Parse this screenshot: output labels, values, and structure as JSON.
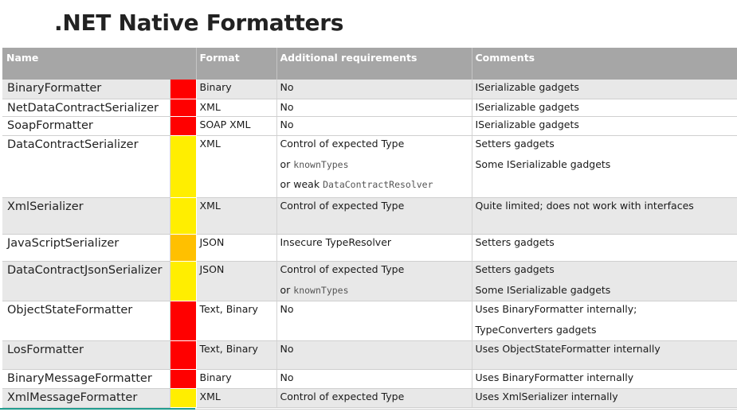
{
  "title": ".NET Native Formatters",
  "colors": {
    "red": "#ff0000",
    "yellow": "#ffee00",
    "orange": "#ffc000",
    "header_bg": "#a6a6a6",
    "row_grey": "#e8e8e8",
    "accent_line": "#1f9c8e"
  },
  "table": {
    "headers": {
      "name": "Name",
      "format": "Format",
      "requirements": "Additional requirements",
      "comments": "Comments"
    },
    "rows": [
      {
        "name": "BinaryFormatter",
        "risk": "red",
        "format": "Binary",
        "req": "No",
        "req_sub": "",
        "req_code": "",
        "req_sub2": "",
        "req_code2": "",
        "comment": "ISerializable gadgets",
        "comment_sub": ""
      },
      {
        "name": "NetDataContractSerializer",
        "risk": "red",
        "format": "XML",
        "req": "No",
        "req_sub": "",
        "req_code": "",
        "req_sub2": "",
        "req_code2": "",
        "comment": "ISerializable gadgets",
        "comment_sub": ""
      },
      {
        "name": "SoapFormatter",
        "risk": "red",
        "format": "SOAP XML",
        "req": "No",
        "req_sub": "",
        "req_code": "",
        "req_sub2": "",
        "req_code2": "",
        "comment": "ISerializable gadgets",
        "comment_sub": ""
      },
      {
        "name": "DataContractSerializer",
        "risk": "yellow",
        "format": "XML",
        "req": "Control of expected Type",
        "req_sub": "or",
        "req_code": "knownTypes",
        "req_sub2": "or weak",
        "req_code2": "DataContractResolver",
        "comment": "Setters gadgets",
        "comment_sub": "Some ISerializable gadgets"
      },
      {
        "name": "XmlSerializer",
        "risk": "yellow",
        "format": "XML",
        "req": "Control of expected Type",
        "req_sub": "",
        "req_code": "",
        "req_sub2": "",
        "req_code2": "",
        "comment": "Quite limited; does not work with interfaces",
        "comment_sub": ""
      },
      {
        "name": "JavaScriptSerializer",
        "risk": "orange",
        "format": "JSON",
        "req": "Insecure TypeResolver",
        "req_sub": "",
        "req_code": "",
        "req_sub2": "",
        "req_code2": "",
        "comment": "Setters gadgets",
        "comment_sub": ""
      },
      {
        "name": "DataContractJsonSerializer",
        "risk": "yellow",
        "format": "JSON",
        "req": "Control of expected Type",
        "req_sub": "or",
        "req_code": "knownTypes",
        "req_sub2": "",
        "req_code2": "",
        "comment": "Setters gadgets",
        "comment_sub": "Some ISerializable gadgets"
      },
      {
        "name": "ObjectStateFormatter",
        "risk": "red",
        "format": "Text, Binary",
        "req": "No",
        "req_sub": "",
        "req_code": "",
        "req_sub2": "",
        "req_code2": "",
        "comment": "Uses BinaryFormatter internally;",
        "comment_sub": "TypeConverters gadgets"
      },
      {
        "name": "LosFormatter",
        "risk": "red",
        "format": "Text, Binary",
        "req": "No",
        "req_sub": "",
        "req_code": "",
        "req_sub2": "",
        "req_code2": "",
        "comment": "Uses ObjectStateFormatter internally",
        "comment_sub": ""
      },
      {
        "name": "BinaryMessageFormatter",
        "risk": "red",
        "format": "Binary",
        "req": "No",
        "req_sub": "",
        "req_code": "",
        "req_sub2": "",
        "req_code2": "",
        "comment": "Uses BinaryFormatter internally",
        "comment_sub": ""
      },
      {
        "name": "XmlMessageFormatter",
        "risk": "yellow",
        "format": "XML",
        "req": "Control of expected Type",
        "req_sub": "",
        "req_code": "",
        "req_sub2": "",
        "req_code2": "",
        "comment": "Uses XmlSerializer internally",
        "comment_sub": ""
      }
    ]
  }
}
